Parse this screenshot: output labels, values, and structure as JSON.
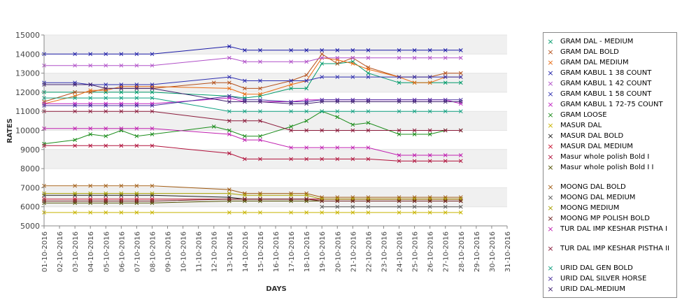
{
  "chart_data": {
    "type": "line",
    "xlabel": "DAYS",
    "ylabel": "RATES",
    "ylim": [
      5000,
      15000
    ],
    "yticks": [
      5000,
      6000,
      7000,
      8000,
      9000,
      10000,
      11000,
      12000,
      13000,
      14000,
      15000
    ],
    "x": [
      "01-10-2016",
      "02-10-2016",
      "03-10-2016",
      "04-10-2016",
      "05-10-2016",
      "06-10-2016",
      "07-10-2016",
      "08-10-2016",
      "09-10-2016",
      "10-10-2016",
      "11-10-2016",
      "12-10-2016",
      "13-10-2016",
      "14-10-2016",
      "15-10-2016",
      "16-10-2016",
      "17-10-2016",
      "18-10-2016",
      "19-10-2016",
      "20-10-2016",
      "21-10-2016",
      "22-10-2016",
      "23-10-2016",
      "24-10-2016",
      "25-10-2016",
      "26-10-2016",
      "27-10-2016",
      "28-10-2016",
      "29-10-2016",
      "30-10-2016",
      "31-10-2016"
    ],
    "grid": "alternating horizontal bands",
    "legend_position": "right",
    "series": [
      {
        "name": "GRAM DAL - MEDIUM",
        "color": "#009a6a",
        "values": [
          12000,
          null,
          12000,
          12000,
          12000,
          12000,
          12000,
          12000,
          null,
          null,
          null,
          null,
          11800,
          11700,
          11800,
          null,
          12200,
          12200,
          13500,
          13500,
          13600,
          13000,
          null,
          12500,
          12500,
          12500,
          12500,
          12500,
          null,
          null,
          null
        ]
      },
      {
        "name": "GRAM DAL BOLD",
        "color": "#b4501a",
        "values": [
          11500,
          null,
          12000,
          12000,
          12200,
          12200,
          12200,
          12200,
          null,
          null,
          null,
          12500,
          12500,
          12200,
          12200,
          null,
          12600,
          12900,
          14000,
          13500,
          13800,
          13300,
          null,
          12800,
          12800,
          12800,
          13000,
          13000,
          null,
          null,
          null
        ]
      },
      {
        "name": "GRAM DAL MEDIUM",
        "color": "#e86a10",
        "values": [
          11400,
          null,
          11800,
          12100,
          12100,
          12300,
          12300,
          12300,
          null,
          null,
          null,
          null,
          12200,
          11900,
          11900,
          null,
          12400,
          12600,
          13800,
          13700,
          13500,
          13200,
          null,
          12800,
          12500,
          12500,
          12800,
          12800,
          null,
          null,
          null
        ]
      },
      {
        "name": "GRAM KABUL 1 38 COUNT",
        "color": "#1a1aa6",
        "values": [
          14000,
          null,
          14000,
          14000,
          14000,
          14000,
          14000,
          14000,
          null,
          null,
          null,
          null,
          14400,
          14200,
          14200,
          null,
          14200,
          14200,
          14200,
          14200,
          14200,
          14200,
          null,
          14200,
          14200,
          14200,
          14200,
          14200,
          null,
          null,
          null
        ]
      },
      {
        "name": "GRAM KABUL 1 42 COUNT",
        "color": "#b050c8",
        "values": [
          13400,
          null,
          13400,
          13400,
          13400,
          13400,
          13400,
          13400,
          null,
          null,
          null,
          null,
          13800,
          13600,
          13600,
          null,
          13600,
          13600,
          13800,
          13800,
          13800,
          13800,
          null,
          13800,
          13800,
          13800,
          13800,
          13800,
          null,
          null,
          null
        ]
      },
      {
        "name": "GRAM KABUL 1 58 COUNT",
        "color": "#3030b0",
        "values": [
          12500,
          null,
          12500,
          12400,
          12400,
          12400,
          12400,
          12400,
          null,
          null,
          null,
          null,
          12800,
          12600,
          12600,
          null,
          12600,
          12600,
          12800,
          12800,
          12800,
          12800,
          null,
          12800,
          12800,
          12800,
          12800,
          12800,
          null,
          null,
          null
        ]
      },
      {
        "name": "GRAM KABUL 1 72-75 COUNT",
        "color": "#c020c0",
        "values": [
          11400,
          null,
          11400,
          11400,
          11400,
          11400,
          11400,
          11400,
          null,
          null,
          null,
          null,
          11700,
          11500,
          11500,
          null,
          11500,
          11600,
          11600,
          11600,
          11600,
          11600,
          null,
          11600,
          11600,
          11600,
          11600,
          11400,
          null,
          null,
          null
        ]
      },
      {
        "name": "GRAM LOOSE",
        "color": "#1a8c1a",
        "values": [
          9300,
          null,
          9500,
          9800,
          9700,
          10000,
          9700,
          9800,
          null,
          null,
          null,
          10200,
          10000,
          9700,
          9700,
          null,
          10200,
          10500,
          11000,
          10700,
          10300,
          10400,
          null,
          9800,
          9800,
          9800,
          10000,
          10000,
          null,
          null,
          null
        ]
      },
      {
        "name": "MASUR DAL",
        "color": "#c8b400",
        "values": [
          5700,
          null,
          5700,
          5700,
          5700,
          5700,
          5700,
          5700,
          null,
          null,
          null,
          null,
          5700,
          5700,
          5700,
          null,
          5700,
          5700,
          5700,
          5700,
          5700,
          5700,
          null,
          5700,
          5700,
          5700,
          5700,
          5700,
          null,
          null,
          null
        ]
      },
      {
        "name": "MASUR DAL BOLD",
        "color": "#202020",
        "values": [
          6600,
          null,
          6600,
          6600,
          6600,
          6600,
          6600,
          6600,
          null,
          null,
          null,
          null,
          6500,
          6400,
          6400,
          null,
          6400,
          6400,
          6400,
          6400,
          6400,
          6400,
          null,
          6400,
          6400,
          6400,
          6400,
          6400,
          null,
          null,
          null
        ]
      },
      {
        "name": "MASUR DAL MEDIUM",
        "color": "#c8102e",
        "values": [
          6400,
          null,
          6400,
          6400,
          6400,
          6400,
          6400,
          6400,
          null,
          null,
          null,
          null,
          6400,
          6400,
          6400,
          null,
          6400,
          6400,
          6400,
          6400,
          6400,
          6400,
          null,
          6400,
          6400,
          6400,
          6400,
          6400,
          null,
          null,
          null
        ]
      },
      {
        "name": "Masur whole polish Bold I",
        "color": "#b0103a",
        "values": [
          9200,
          null,
          9200,
          9200,
          9200,
          9200,
          9200,
          9200,
          null,
          null,
          null,
          null,
          8800,
          8500,
          8500,
          null,
          8500,
          8500,
          8500,
          8500,
          8500,
          8500,
          null,
          8400,
          8400,
          8400,
          8400,
          8400,
          null,
          null,
          null
        ]
      },
      {
        "name": "Masur whole polish Bold I I",
        "color": "#505000",
        "values": [
          6200,
          null,
          6200,
          6200,
          6200,
          6200,
          6200,
          6200,
          null,
          null,
          null,
          null,
          6300,
          6300,
          6300,
          null,
          6300,
          6300,
          6300,
          6300,
          6300,
          6300,
          null,
          6300,
          6300,
          6300,
          6300,
          6300,
          null,
          null,
          null
        ]
      },
      {
        "name": "MOONG DAL BOLD",
        "color": "#a05a10",
        "values": [
          7100,
          null,
          7100,
          7100,
          7100,
          7100,
          7100,
          7100,
          null,
          null,
          null,
          null,
          6900,
          6700,
          6700,
          null,
          6700,
          6700,
          6500,
          6500,
          6500,
          6500,
          null,
          6500,
          6500,
          6500,
          6500,
          6500,
          null,
          null,
          null
        ]
      },
      {
        "name": "MOONG DAL MEDIUM",
        "color": "#555555",
        "values": [
          null,
          null,
          null,
          null,
          null,
          null,
          null,
          null,
          null,
          null,
          null,
          null,
          null,
          null,
          null,
          null,
          null,
          null,
          6000,
          6000,
          6000,
          6000,
          null,
          6000,
          6000,
          6000,
          6000,
          6000,
          null,
          null,
          null
        ]
      },
      {
        "name": "MOONG MEDIUM",
        "color": "#a8a000",
        "values": [
          6700,
          null,
          6700,
          6700,
          6700,
          6700,
          6700,
          6700,
          null,
          null,
          null,
          null,
          6700,
          6600,
          6600,
          null,
          6600,
          6600,
          6400,
          6400,
          6400,
          6400,
          null,
          6400,
          6400,
          6400,
          6400,
          6400,
          null,
          null,
          null
        ]
      },
      {
        "name": "MOONG MP POLISH BOLD",
        "color": "#702020",
        "values": [
          6300,
          null,
          6300,
          6300,
          6300,
          6300,
          6300,
          6300,
          null,
          null,
          null,
          null,
          6400,
          6400,
          6400,
          null,
          6400,
          6400,
          6300,
          6300,
          6300,
          6300,
          null,
          6300,
          6300,
          6300,
          6300,
          6300,
          null,
          null,
          null
        ]
      },
      {
        "name": "TUR DAL IMP KESHAR PISTHA I",
        "color": "#c020b0",
        "values": [
          10100,
          null,
          10100,
          10100,
          10100,
          10100,
          10100,
          10100,
          null,
          null,
          null,
          null,
          9800,
          9500,
          9500,
          null,
          9100,
          9100,
          9100,
          9100,
          9100,
          9100,
          null,
          8700,
          8700,
          8700,
          8700,
          8700,
          null,
          null,
          null
        ]
      },
      {
        "name": "TUR DAL IMP KESHAR PISTHA II",
        "color": "#8a1a3a",
        "values": [
          11000,
          null,
          11000,
          11000,
          11000,
          11000,
          11000,
          11000,
          null,
          null,
          null,
          null,
          10500,
          10500,
          10500,
          null,
          10000,
          10000,
          10000,
          10000,
          10000,
          10000,
          null,
          10000,
          10000,
          10000,
          10000,
          10000,
          null,
          null,
          null
        ]
      },
      {
        "name": "URID DAL GEN BOLD",
        "color": "#10a080",
        "values": [
          11700,
          null,
          11700,
          11700,
          11700,
          11700,
          11700,
          11700,
          null,
          null,
          null,
          null,
          11000,
          11000,
          11000,
          null,
          11000,
          11000,
          11000,
          11000,
          11000,
          11000,
          null,
          11000,
          11000,
          11000,
          11000,
          11000,
          null,
          null,
          null
        ]
      },
      {
        "name": "URID DAL SILVER HORSE",
        "color": "#4a30a0",
        "values": [
          11300,
          null,
          11300,
          11300,
          11300,
          11300,
          11300,
          11300,
          null,
          null,
          null,
          null,
          11800,
          11600,
          11600,
          null,
          11500,
          11500,
          11600,
          11600,
          11600,
          11600,
          null,
          11600,
          11600,
          11600,
          11600,
          11600,
          null,
          null,
          null
        ]
      },
      {
        "name": "URID DAL-MEDIUM",
        "color": "#402070",
        "values": [
          12400,
          null,
          12400,
          12400,
          12200,
          12200,
          12200,
          12200,
          null,
          null,
          null,
          null,
          11500,
          11500,
          11500,
          null,
          11400,
          11400,
          11500,
          11500,
          11500,
          11500,
          null,
          11500,
          11500,
          11500,
          11500,
          11500,
          null,
          null,
          null
        ]
      }
    ]
  }
}
